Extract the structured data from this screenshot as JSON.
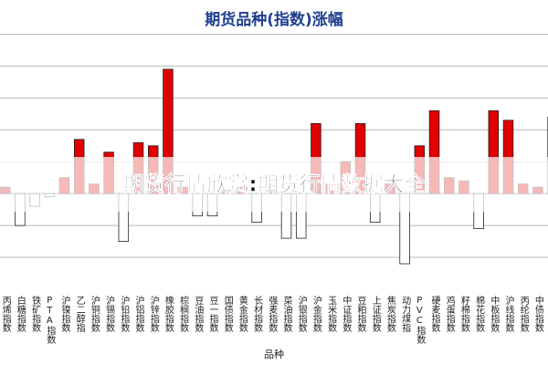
{
  "chart_data": {
    "type": "bar",
    "title": "期货品种(指数)涨幅",
    "x_label": "品种",
    "banner": "期货行情欣赏:期货行情数据大全",
    "categories": [
      "丙烯指数",
      "白糖指数",
      "铁矿指数",
      "PTA指数",
      "沪镍指数",
      "乙二醇指",
      "沪铜指数",
      "沪锡指数",
      "沪铅指数",
      "沪铝指数",
      "沪锌指数",
      "橡胶指数",
      "棕榈指数",
      "豆油指数",
      "豆一指数",
      "国债指数",
      "黄金指数",
      "长材指数",
      "强麦指数",
      "菜油指数",
      "沪银指数",
      "沪金指数",
      "玉米指数",
      "中证指数",
      "豆粕指数",
      "上证指数",
      "焦炭指数",
      "动力煤指",
      "PVC指数",
      "硬麦指数",
      "鸡蛋指数",
      "籽棉指数",
      "棉花指数",
      "中板指数",
      "沪线指数",
      "丙纶指数",
      "中债指数",
      "沪板指数"
    ],
    "values": [
      0.2,
      -1.0,
      -0.4,
      -0.1,
      0.5,
      1.7,
      0.3,
      1.3,
      -1.5,
      1.6,
      1.5,
      3.9,
      0.2,
      -0.7,
      -0.7,
      0.1,
      0.2,
      -0.9,
      0.1,
      -1.4,
      -1.4,
      2.2,
      0.3,
      1.0,
      2.2,
      -0.9,
      0.3,
      -2.2,
      1.5,
      2.6,
      0.5,
      0.4,
      -1.1,
      2.6,
      2.3,
      0.3,
      0.2,
      2.4
    ],
    "up_color": "#e00000",
    "down_color": "#ffffff",
    "ylim": [
      -3,
      5.5
    ],
    "yticks": [
      -2,
      -1,
      0,
      1,
      2,
      3,
      4,
      5
    ],
    "grid": true
  }
}
